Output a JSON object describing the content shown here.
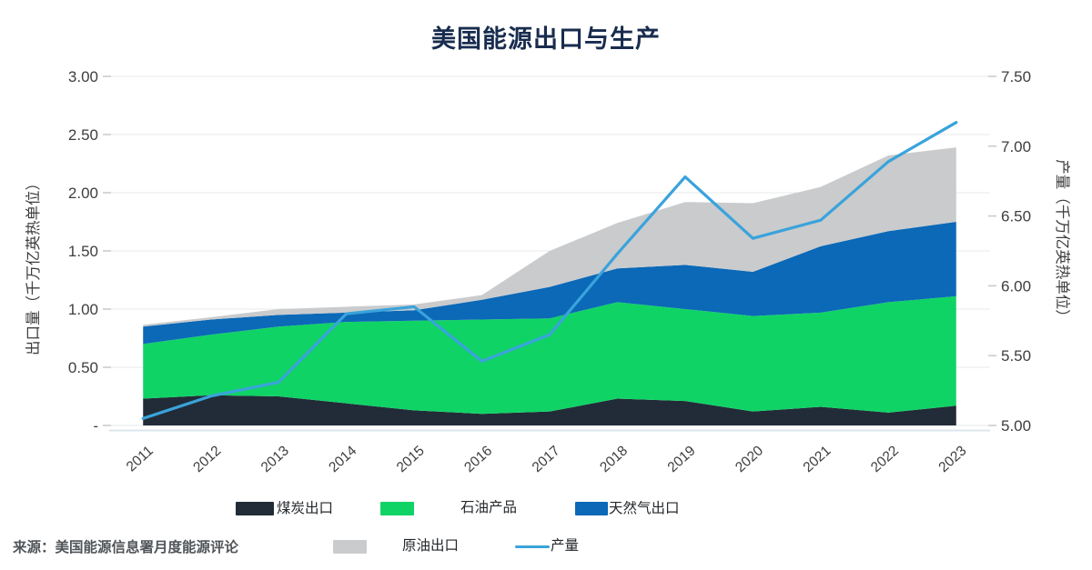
{
  "title": "美国能源出口与生产",
  "source": "来源：美国能源信息署月度能源评论",
  "palette": {
    "title_text": "#182c4e",
    "grid": "#e7e8e9",
    "tick": "#c9c9c9",
    "axis_text": "#3e3e3e",
    "baseline": "#dce6ee",
    "legend_text": "#24272b"
  },
  "chart_data": {
    "type": "area",
    "stacked": true,
    "grid": true,
    "legend_position": "bottom",
    "categories": [
      "2011",
      "2012",
      "2013",
      "2014",
      "2015",
      "2016",
      "2017",
      "2018",
      "2019",
      "2020",
      "2021",
      "2022",
      "2023"
    ],
    "series": [
      {
        "id": "coal-exports",
        "name": "煤炭出口",
        "type": "area",
        "axis": "left",
        "color": "#212c38",
        "values": [
          0.23,
          0.26,
          0.25,
          0.19,
          0.13,
          0.1,
          0.12,
          0.23,
          0.21,
          0.12,
          0.16,
          0.11,
          0.17
        ]
      },
      {
        "id": "petroleum-products",
        "name": "石油产品",
        "type": "area",
        "axis": "left",
        "color": "#10d366",
        "values": [
          0.47,
          0.52,
          0.6,
          0.7,
          0.77,
          0.81,
          0.8,
          0.83,
          0.79,
          0.82,
          0.81,
          0.95,
          0.94
        ]
      },
      {
        "id": "natural-gas-exports",
        "name": "天然气出口",
        "type": "area",
        "axis": "left",
        "color": "#0b69b7",
        "values": [
          0.15,
          0.13,
          0.1,
          0.08,
          0.09,
          0.17,
          0.27,
          0.29,
          0.38,
          0.38,
          0.57,
          0.61,
          0.64
        ]
      },
      {
        "id": "crude-oil-exports",
        "name": "原油出口",
        "type": "area",
        "axis": "left",
        "color": "#c9cbcd",
        "values": [
          0.015,
          0.02,
          0.05,
          0.05,
          0.05,
          0.04,
          0.31,
          0.39,
          0.54,
          0.59,
          0.51,
          0.65,
          0.64
        ]
      },
      {
        "id": "production",
        "name": "产量",
        "type": "line",
        "axis": "right",
        "color": "#3aa3db",
        "values": [
          5.05,
          5.21,
          5.31,
          5.8,
          5.85,
          5.46,
          5.65,
          6.23,
          6.78,
          6.34,
          6.47,
          6.89,
          7.17
        ]
      }
    ],
    "left_axis": {
      "title": "出口量（千万亿英热单位）",
      "min": 0,
      "max": 3,
      "step": 0.5,
      "ticks": [
        "3.00",
        "2.50",
        "2.00",
        "1.50",
        "1.00",
        "0.50",
        "-"
      ]
    },
    "right_axis": {
      "title": "产量（千万亿英热单位）",
      "min": 5,
      "max": 7.5,
      "step": 0.5,
      "ticks": [
        "7.50",
        "7.00",
        "6.50",
        "6.00",
        "5.50",
        "5.00"
      ]
    }
  }
}
